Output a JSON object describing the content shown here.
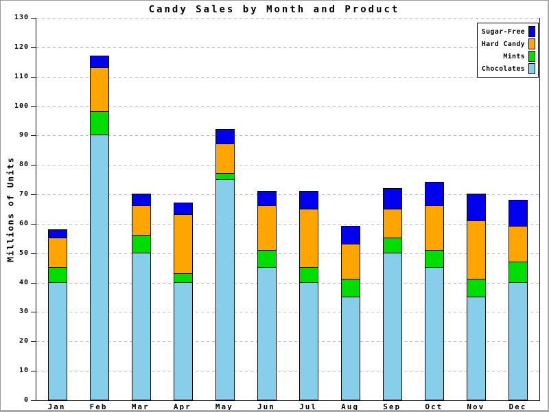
{
  "chart_data": {
    "type": "bar",
    "stacked": true,
    "title": "Candy Sales by Month and Product",
    "xlabel": "",
    "ylabel": "Millions of Units",
    "ylim": [
      0,
      130
    ],
    "ytick_labels": [
      "0",
      "10",
      "20",
      "30",
      "40",
      "50",
      "60",
      "70",
      "80",
      "90",
      "100",
      "110",
      "120",
      "130"
    ],
    "grid": "horizontal-dashed",
    "legend_position": "top-right",
    "categories": [
      "Jan",
      "Feb",
      "Mar",
      "Apr",
      "May",
      "Jun",
      "Jul",
      "Aug",
      "Sep",
      "Oct",
      "Nov",
      "Dec"
    ],
    "series": [
      {
        "name": "Chocolates",
        "color": "#87CEEB",
        "values": [
          40,
          90,
          50,
          40,
          75,
          45,
          40,
          35,
          50,
          45,
          35,
          40
        ]
      },
      {
        "name": "Mints",
        "color": "#00DD00",
        "values": [
          5,
          8,
          6,
          3,
          2,
          6,
          5,
          6,
          5,
          6,
          6,
          7
        ]
      },
      {
        "name": "Hard Candy",
        "color": "#FFA500",
        "values": [
          10,
          15,
          10,
          20,
          10,
          15,
          20,
          12,
          10,
          15,
          20,
          12
        ]
      },
      {
        "name": "Sugar-Free",
        "color": "#0000EE",
        "values": [
          3,
          4,
          4,
          4,
          5,
          5,
          6,
          6,
          7,
          8,
          9,
          9
        ]
      }
    ],
    "stack_totals": [
      58,
      117,
      70,
      67,
      92,
      71,
      71,
      59,
      72,
      74,
      70,
      68
    ]
  },
  "legend": {
    "entries": [
      {
        "label": "Sugar-Free",
        "color": "#0000EE"
      },
      {
        "label": "Hard Candy",
        "color": "#FFA500"
      },
      {
        "label": "Mints",
        "color": "#00DD00"
      },
      {
        "label": "Chocolates",
        "color": "#87CEEB"
      }
    ]
  },
  "colors": {
    "background": "#ffffff",
    "axis": "#000000",
    "gridline": "#b8b8b8",
    "frame_shadow": "#a8a8a8"
  }
}
